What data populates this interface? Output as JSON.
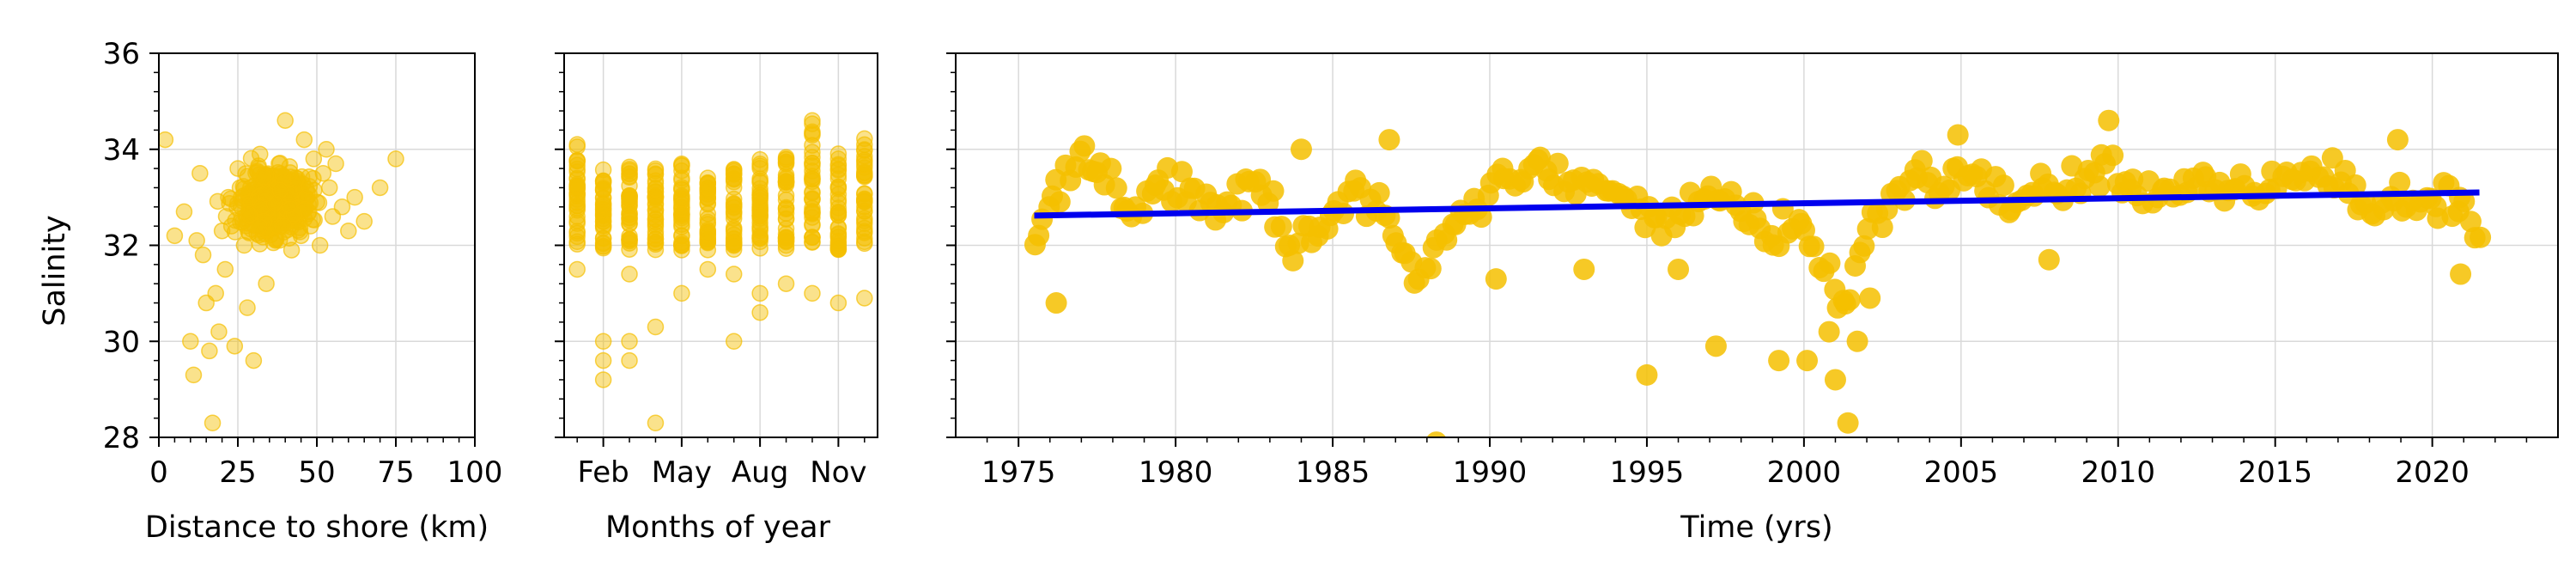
{
  "colors": {
    "points": "#f5bf00",
    "trend": "#0000ee",
    "grid": "#d9d9d9",
    "axes": "#000000"
  },
  "chart_data": [
    {
      "type": "scatter",
      "xlabel": "Distance to shore (km)",
      "ylabel": "Salinity",
      "xlim": [
        0,
        100
      ],
      "ylim": [
        28,
        36
      ],
      "xticks": [
        0,
        25,
        50,
        75,
        100
      ],
      "yticks": [
        28,
        30,
        32,
        34,
        36
      ],
      "grid": true,
      "point_style": "small translucent circles",
      "points": [
        [
          2,
          34.2
        ],
        [
          5,
          32.2
        ],
        [
          8,
          32.7
        ],
        [
          10,
          30.0
        ],
        [
          11,
          29.3
        ],
        [
          12,
          32.1
        ],
        [
          13,
          33.5
        ],
        [
          14,
          31.8
        ],
        [
          15,
          30.8
        ],
        [
          16,
          29.8
        ],
        [
          17,
          28.3
        ],
        [
          18,
          31.0
        ],
        [
          19,
          30.2
        ],
        [
          20,
          32.3
        ],
        [
          21,
          31.5
        ],
        [
          22,
          33.0
        ],
        [
          23,
          32.4
        ],
        [
          24,
          29.9
        ],
        [
          25,
          33.6
        ],
        [
          26,
          32.8
        ],
        [
          27,
          32.0
        ],
        [
          28,
          30.7
        ],
        [
          29,
          33.2
        ],
        [
          30,
          29.6
        ],
        [
          31,
          32.6
        ],
        [
          32,
          33.9
        ],
        [
          33,
          32.3
        ],
        [
          34,
          31.2
        ],
        [
          35,
          33.4
        ],
        [
          36,
          32.9
        ],
        [
          37,
          32.1
        ],
        [
          38,
          33.7
        ],
        [
          39,
          32.5
        ],
        [
          40,
          34.6
        ],
        [
          41,
          33.0
        ],
        [
          42,
          31.9
        ],
        [
          43,
          32.7
        ],
        [
          44,
          33.3
        ],
        [
          45,
          32.2
        ],
        [
          46,
          34.2
        ],
        [
          47,
          33.1
        ],
        [
          48,
          32.4
        ],
        [
          49,
          33.8
        ],
        [
          50,
          32.9
        ],
        [
          51,
          32.0
        ],
        [
          52,
          33.5
        ],
        [
          53,
          34.0
        ],
        [
          54,
          33.2
        ],
        [
          55,
          32.6
        ],
        [
          56,
          33.7
        ],
        [
          58,
          32.8
        ],
        [
          60,
          32.3
        ],
        [
          62,
          33.0
        ],
        [
          65,
          32.5
        ],
        [
          70,
          33.2
        ],
        [
          75,
          33.8
        ]
      ],
      "cloud": {
        "x": [
          14,
          58
        ],
        "y_center": 32.9,
        "y_spread": 0.7,
        "count": 320,
        "seed": 7
      }
    },
    {
      "type": "scatter",
      "xlabel": "Months of year",
      "ylabel": "",
      "xlim": [
        0.5,
        12.5
      ],
      "ylim": [
        28,
        36
      ],
      "xticks": [
        2,
        5,
        8,
        11
      ],
      "xticklabels": [
        "Feb",
        "May",
        "Aug",
        "Nov"
      ],
      "yticks": [
        28,
        30,
        32,
        34,
        36
      ],
      "grid": true,
      "point_style": "small translucent circles",
      "columns": [
        {
          "month": 1,
          "min": 30.6,
          "max": 34.1,
          "outliers": [
            31.5,
            34.1
          ]
        },
        {
          "month": 2,
          "min": 29.2,
          "max": 33.6,
          "outliers": [
            29.2,
            29.6,
            30.0
          ]
        },
        {
          "month": 3,
          "min": 29.6,
          "max": 33.7,
          "outliers": [
            29.6,
            30.0,
            31.4
          ]
        },
        {
          "month": 4,
          "min": 28.3,
          "max": 33.6,
          "outliers": [
            28.3,
            30.3
          ]
        },
        {
          "month": 5,
          "min": 31.0,
          "max": 33.7,
          "outliers": [
            31.0
          ]
        },
        {
          "month": 6,
          "min": 31.5,
          "max": 33.6,
          "outliers": [
            31.5
          ]
        },
        {
          "month": 7,
          "min": 30.0,
          "max": 33.6,
          "outliers": [
            30.0,
            31.4
          ]
        },
        {
          "month": 8,
          "min": 30.6,
          "max": 33.8,
          "outliers": [
            30.6,
            31.0
          ]
        },
        {
          "month": 9,
          "min": 31.2,
          "max": 33.9,
          "outliers": [
            31.2
          ]
        },
        {
          "month": 10,
          "min": 30.8,
          "max": 34.6,
          "outliers": [
            31.0,
            34.6
          ]
        },
        {
          "month": 11,
          "min": 31.9,
          "max": 34.0,
          "outliers": [
            30.8
          ]
        },
        {
          "month": 12,
          "min": 32.0,
          "max": 34.3,
          "outliers": [
            30.9
          ]
        }
      ],
      "points_per_column": 34,
      "seed": 11
    },
    {
      "type": "scatter",
      "xlabel": "Time (yrs)",
      "ylabel": "",
      "xlim": [
        1973,
        2024
      ],
      "ylim": [
        28,
        36
      ],
      "xticks": [
        1975,
        1980,
        1985,
        1990,
        1995,
        2000,
        2005,
        2010,
        2015,
        2020
      ],
      "yticks": [
        28,
        30,
        32,
        34,
        36
      ],
      "grid": true,
      "point_style": "large opaque circles",
      "trend": {
        "x": [
          1975.5,
          2021.5
        ],
        "y": [
          32.62,
          33.1
        ]
      },
      "anchors": [
        [
          1975.5,
          32.2
        ],
        [
          1976.2,
          33.1
        ],
        [
          1977.0,
          33.8
        ],
        [
          1977.8,
          33.2
        ],
        [
          1978.6,
          32.6
        ],
        [
          1979.5,
          33.4
        ],
        [
          1980.5,
          33.1
        ],
        [
          1981.5,
          32.6
        ],
        [
          1982.5,
          33.4
        ],
        [
          1983.3,
          32.3
        ],
        [
          1984.0,
          31.9
        ],
        [
          1985.0,
          32.6
        ],
        [
          1985.7,
          33.5
        ],
        [
          1986.5,
          32.8
        ],
        [
          1987.2,
          31.8
        ],
        [
          1987.8,
          31.3
        ],
        [
          1988.5,
          32.2
        ],
        [
          1989.5,
          32.8
        ],
        [
          1990.5,
          33.4
        ],
        [
          1991.5,
          33.6
        ],
        [
          1992.5,
          33.2
        ],
        [
          1993.5,
          33.4
        ],
        [
          1994.5,
          32.9
        ],
        [
          1995.5,
          32.4
        ],
        [
          1996.5,
          32.8
        ],
        [
          1997.5,
          33.0
        ],
        [
          1998.3,
          32.8
        ],
        [
          1999.0,
          32.3
        ],
        [
          1999.8,
          32.6
        ],
        [
          2000.5,
          31.6
        ],
        [
          2001.3,
          30.7
        ],
        [
          2002.0,
          32.2
        ],
        [
          2002.8,
          32.8
        ],
        [
          2003.5,
          33.3
        ],
        [
          2004.3,
          33.2
        ],
        [
          2005.0,
          33.6
        ],
        [
          2006.0,
          33.2
        ],
        [
          2007.0,
          32.9
        ],
        [
          2008.0,
          33.2
        ],
        [
          2009.0,
          33.5
        ],
        [
          2009.8,
          33.7
        ],
        [
          2010.6,
          33.0
        ],
        [
          2011.5,
          33.1
        ],
        [
          2012.5,
          33.4
        ],
        [
          2013.5,
          33.0
        ],
        [
          2014.5,
          33.2
        ],
        [
          2015.5,
          33.5
        ],
        [
          2016.5,
          33.6
        ],
        [
          2017.3,
          33.3
        ],
        [
          2018.0,
          32.6
        ],
        [
          2018.8,
          33.1
        ],
        [
          2019.5,
          32.7
        ],
        [
          2020.3,
          33.0
        ],
        [
          2021.0,
          32.8
        ],
        [
          2021.5,
          32.2
        ]
      ],
      "noise": 0.38,
      "points_per_year": 7,
      "extra_points": [
        [
          1976.2,
          30.8
        ],
        [
          1988.3,
          27.9
        ],
        [
          1995.0,
          29.3
        ],
        [
          1997.2,
          29.9
        ],
        [
          1999.2,
          29.6
        ],
        [
          2000.1,
          29.6
        ],
        [
          2000.8,
          30.2
        ],
        [
          2001.0,
          29.2
        ],
        [
          2001.4,
          28.3
        ],
        [
          2001.7,
          30.0
        ],
        [
          2002.1,
          30.9
        ],
        [
          2007.8,
          31.7
        ],
        [
          1990.2,
          31.3
        ],
        [
          2020.9,
          31.4
        ],
        [
          1984.0,
          34.0
        ],
        [
          1986.8,
          34.2
        ],
        [
          2004.9,
          34.3
        ],
        [
          2009.7,
          34.6
        ],
        [
          2018.9,
          34.2
        ],
        [
          1996.0,
          31.5
        ],
        [
          1993.0,
          31.5
        ]
      ],
      "seed": 3
    }
  ]
}
